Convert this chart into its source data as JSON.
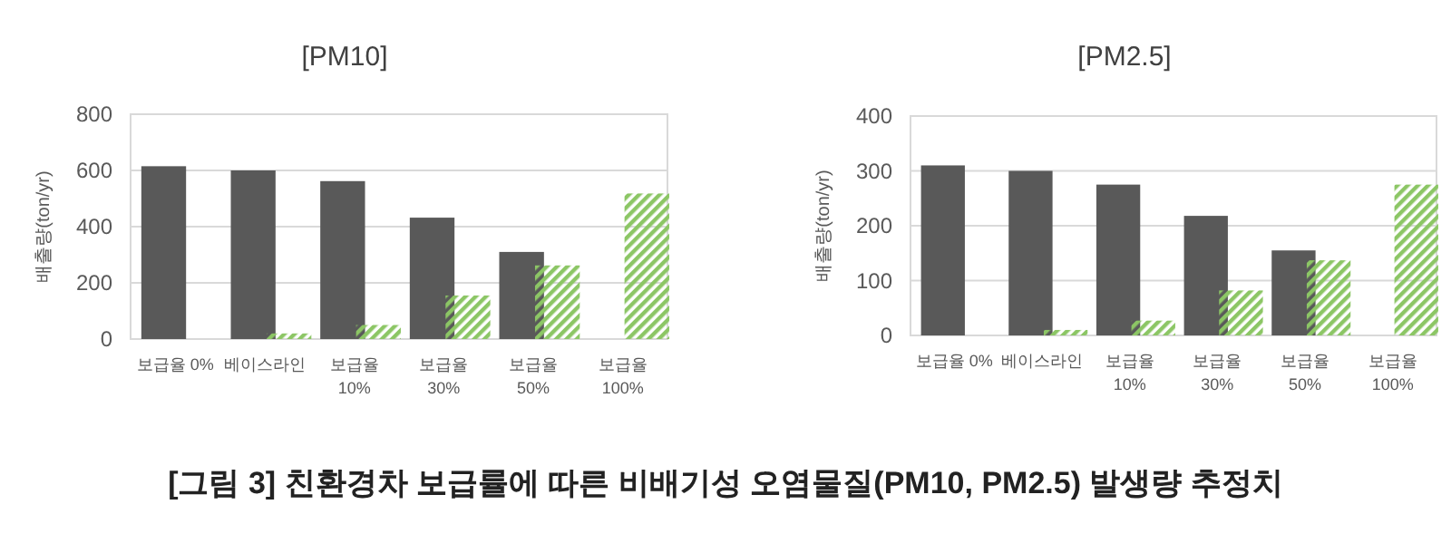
{
  "chart_data": [
    {
      "type": "bar",
      "title": "[PM10]",
      "ylabel": "배출량(ton/yr)",
      "categories": [
        "보급율 0%",
        "베이스라인",
        "보급율\n10%",
        "보급율\n30%",
        "보급율\n50%",
        "보급율\n100%"
      ],
      "series": [
        {
          "color": "#595959",
          "values": [
            615,
            600,
            562,
            432,
            310,
            null
          ]
        },
        {
          "color": "#8cc665",
          "values": [
            null,
            20,
            50,
            155,
            262,
            518
          ]
        }
      ],
      "ylim": [
        0,
        800
      ],
      "yticks": [
        0,
        200,
        400,
        600,
        800
      ],
      "grid": "y",
      "annotations": [
        "[그림 3] 친환경차 보급률에 따른 비배기성 오염물질(PM10, PM2.5) 발생량 추정치"
      ]
    },
    {
      "type": "bar",
      "title": "[PM2.5]",
      "ylabel": "배출량(ton/yr)",
      "categories": [
        "보급율 0%",
        "베이스라인",
        "보급율\n10%",
        "보급율\n30%",
        "보급율\n50%",
        "보급율\n100%"
      ],
      "series": [
        {
          "color": "#595959",
          "values": [
            310,
            300,
            275,
            218,
            155,
            null
          ]
        },
        {
          "color": "#8cc665",
          "values": [
            null,
            10,
            27,
            82,
            137,
            275
          ]
        }
      ],
      "ylim": [
        0,
        400
      ],
      "yticks": [
        0,
        100,
        200,
        300,
        400
      ],
      "grid": "y"
    }
  ]
}
